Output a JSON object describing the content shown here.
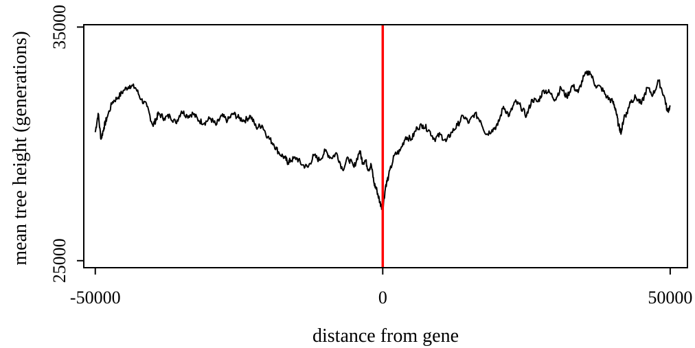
{
  "chart_data": {
    "type": "line",
    "title": "",
    "xlabel": "distance from gene",
    "ylabel": "mean tree height (generations)",
    "xlim": [
      -52000,
      53000
    ],
    "ylim": [
      24700,
      35100
    ],
    "x_ticks": [
      -50000,
      0,
      50000
    ],
    "x_tick_labels": [
      "-50000",
      "0",
      "50000"
    ],
    "y_ticks": [
      25000,
      35000
    ],
    "y_tick_labels": [
      "25000",
      "35000"
    ],
    "grid": false,
    "legend": "none",
    "vline": {
      "x": 0,
      "color": "#ff0000"
    },
    "series": [
      {
        "color": "#000000",
        "x": [
          -50000,
          -49500,
          -49000,
          -48500,
          -48000,
          -47000,
          -46000,
          -45000,
          -44000,
          -43000,
          -42000,
          -41000,
          -40000,
          -39500,
          -39000,
          -38000,
          -37000,
          -36000,
          -35000,
          -34000,
          -33000,
          -32000,
          -31000,
          -30000,
          -29000,
          -28000,
          -27000,
          -26000,
          -25000,
          -24000,
          -23000,
          -22000,
          -21000,
          -20000,
          -19000,
          -18000,
          -17000,
          -16500,
          -16000,
          -15000,
          -14000,
          -13000,
          -12000,
          -11000,
          -10000,
          -9000,
          -8000,
          -7000,
          -6000,
          -5000,
          -4000,
          -3500,
          -3000,
          -2500,
          -2000,
          -1500,
          -1000,
          -500,
          0,
          500,
          1000,
          2000,
          3000,
          4000,
          5000,
          6000,
          7000,
          8000,
          9000,
          10000,
          11000,
          12000,
          13000,
          14000,
          15000,
          16000,
          17000,
          18000,
          19000,
          20000,
          21000,
          22000,
          23000,
          24000,
          25000,
          26000,
          27000,
          28000,
          29000,
          30000,
          31000,
          32000,
          33000,
          34000,
          35000,
          36000,
          37000,
          38000,
          39000,
          40000,
          40500,
          41000,
          41500,
          42000,
          42500,
          43000,
          44000,
          45000,
          46000,
          47000,
          48000,
          49000,
          49500,
          50000
        ],
        "values": [
          30500,
          31300,
          30200,
          30700,
          31100,
          31800,
          32000,
          32300,
          32500,
          32400,
          31900,
          31600,
          30800,
          31000,
          31300,
          31100,
          31200,
          30900,
          31400,
          31200,
          31300,
          31000,
          30900,
          31100,
          30800,
          31200,
          31000,
          31300,
          31100,
          31000,
          31200,
          30700,
          30800,
          30300,
          30000,
          29600,
          29400,
          29200,
          29300,
          29400,
          29100,
          29000,
          29500,
          29300,
          29700,
          29400,
          29600,
          28900,
          29400,
          29000,
          29700,
          29200,
          29300,
          28900,
          29100,
          28300,
          28000,
          27500,
          27200,
          28200,
          28600,
          29500,
          29700,
          30300,
          30200,
          30700,
          30800,
          30600,
          30200,
          30400,
          30100,
          30500,
          30800,
          31200,
          30900,
          31300,
          31000,
          30400,
          30600,
          30800,
          31600,
          31200,
          31800,
          31600,
          31200,
          31900,
          31800,
          32300,
          32200,
          31900,
          32400,
          32000,
          32500,
          32200,
          32900,
          33100,
          32500,
          32400,
          32000,
          31800,
          31500,
          30800,
          30500,
          31200,
          31300,
          31800,
          32000,
          31700,
          32400,
          32100,
          32700,
          32000,
          31400,
          31600
        ]
      }
    ]
  }
}
